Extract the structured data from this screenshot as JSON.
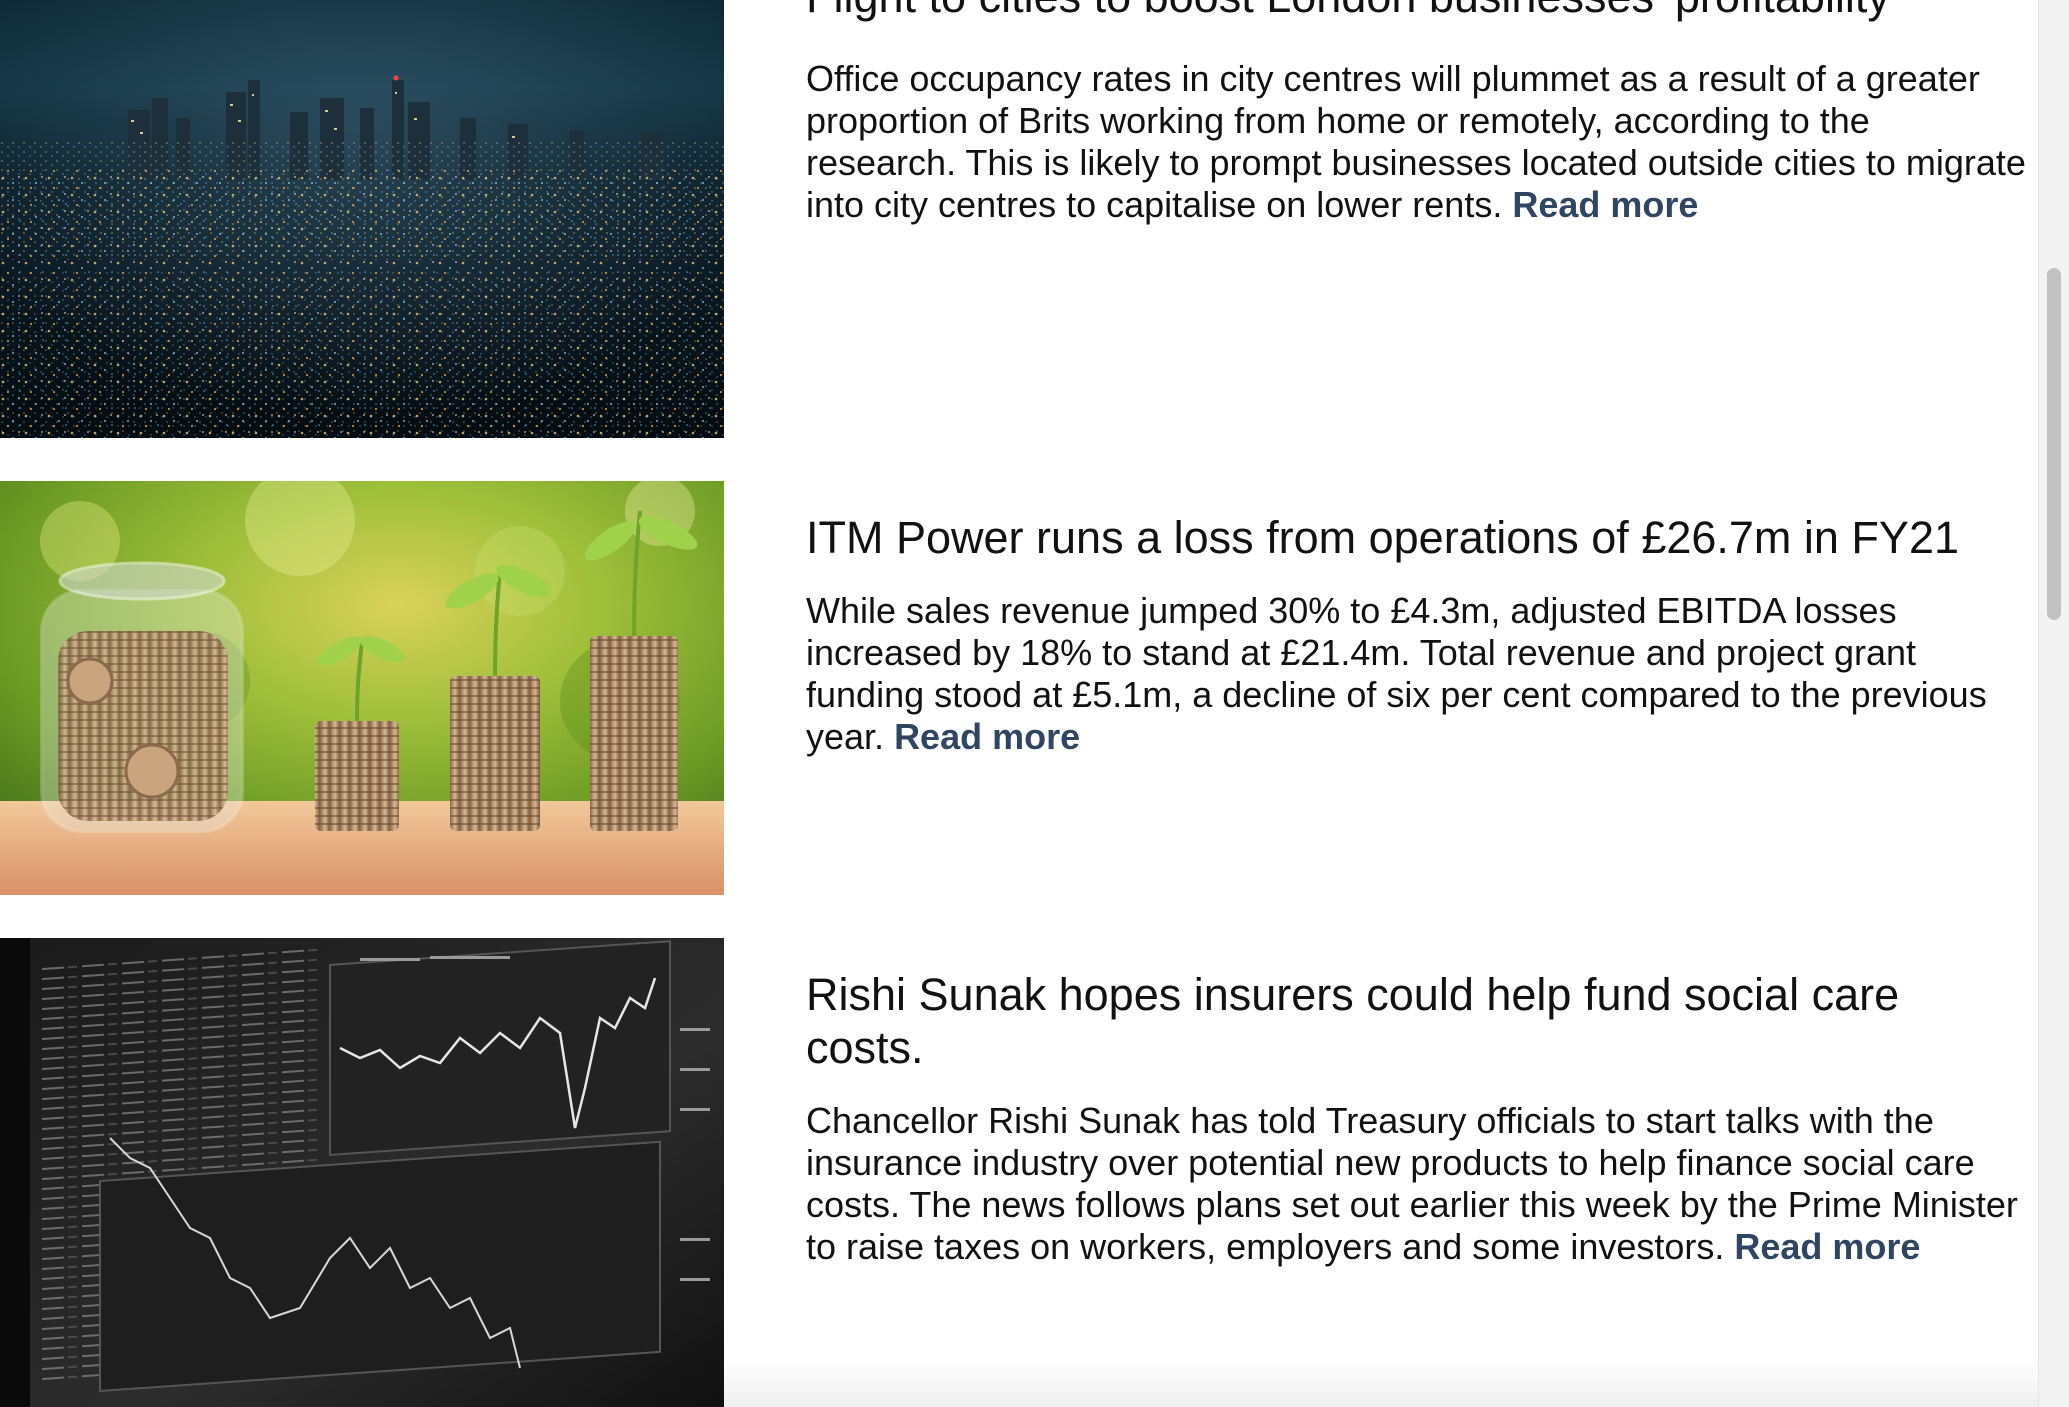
{
  "articles": [
    {
      "headline": "Flight to cities to boost London businesses’ profitability",
      "summary": "Office occupancy rates in city centres will plummet as a result of a greater proportion of Brits working from home or remotely, according to the research. This is likely to prompt businesses located outside cities to migrate into city centres to capitalise on lower rents.",
      "read_more": "Read more",
      "image": "city-night-skyline-image"
    },
    {
      "headline": "ITM Power runs a loss from operations of £26.7m in FY21",
      "summary": "While sales revenue jumped 30% to £4.3m, adjusted EBITDA losses increased by 18% to stand at £21.4m. Total revenue and project grant funding stood at £5.1m, a decline of six per cent compared to the previous year.",
      "read_more": "Read more",
      "image": "coins-jar-plants-image"
    },
    {
      "headline": "Rishi Sunak hopes insurers could help fund social care costs.",
      "summary": "Chancellor Rishi Sunak has told Treasury officials to start talks with the insurance industry over potential new products to help finance social care costs. The news follows plans set out earlier this week by the Prime Minister to raise taxes on workers, employers and some investors.",
      "read_more": "Read more",
      "image": "stock-market-monitor-image"
    }
  ],
  "colors": {
    "link": "#2f4562",
    "text": "#111111",
    "background": "#ffffff"
  }
}
